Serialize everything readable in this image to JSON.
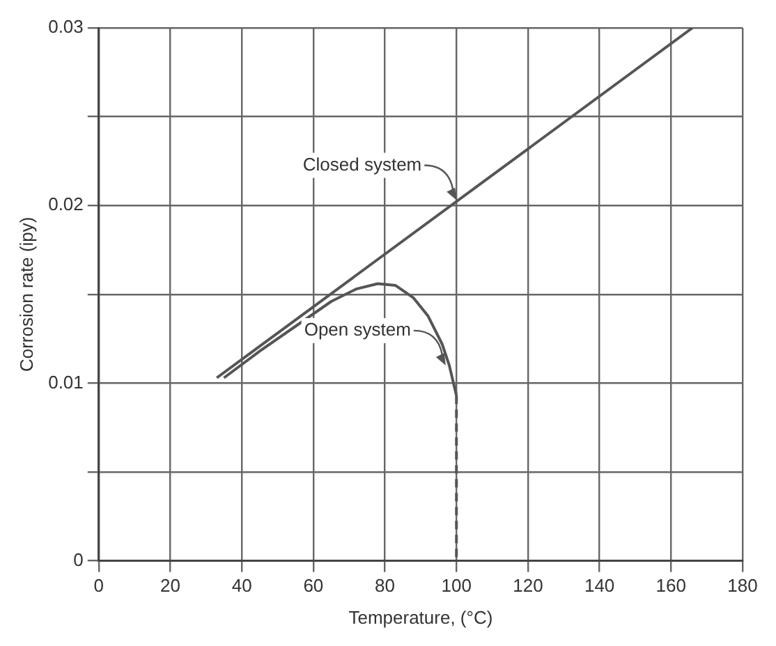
{
  "chart_data": {
    "type": "line",
    "xlabel": "Temperature, (°C)",
    "ylabel": "Corrosion rate (ipy)",
    "xlim": [
      0,
      180
    ],
    "xticks": [
      0,
      20,
      40,
      60,
      80,
      100,
      120,
      140,
      160,
      180
    ],
    "ylim": [
      0,
      0.03
    ],
    "yticks": [
      0,
      {
        "value": 0.005,
        "label": null
      },
      0.01,
      {
        "value": 0.015,
        "label": null
      },
      0.02,
      {
        "value": 0.025,
        "label": null
      },
      0.03
    ],
    "grid": true,
    "marker": "none",
    "line_style": "solid",
    "series": [
      {
        "color": "#555555",
        "x": [
          33,
          166
        ],
        "values": [
          0.0103,
          0.03
        ]
      },
      {
        "color": "#555555",
        "x": [
          35,
          45,
          55,
          65,
          72,
          78,
          83,
          88,
          92,
          96,
          98,
          100
        ],
        "values": [
          0.0103,
          0.0118,
          0.0132,
          0.0146,
          0.0153,
          0.0156,
          0.0155,
          0.0148,
          0.0138,
          0.0122,
          0.011,
          0.0093
        ]
      },
      {
        "color": "#555555",
        "line_style": "dashed",
        "x": [
          100,
          100
        ],
        "values": [
          0.0093,
          0
        ]
      }
    ],
    "annotations": [
      {
        "text": "Closed system",
        "x": 100,
        "y": 0.0203
      },
      {
        "text": "Open system",
        "x": 97,
        "y": 0.011
      }
    ]
  }
}
